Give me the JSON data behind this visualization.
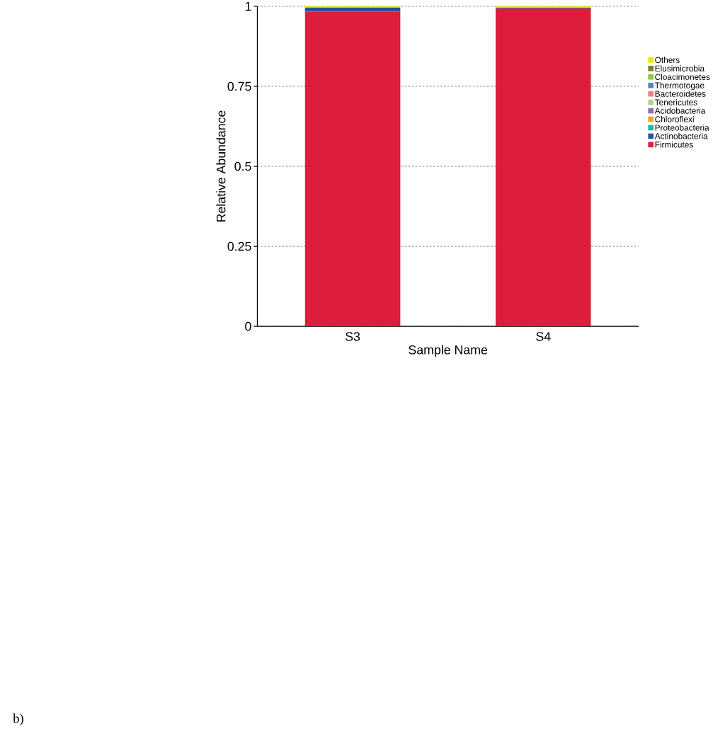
{
  "chart_data": {
    "type": "bar",
    "stacked": true,
    "xlabel": "Sample Name",
    "ylabel": "Relative Abundance",
    "categories": [
      "S3",
      "S4"
    ],
    "series": [
      {
        "name": "Firmicutes",
        "color": "#dc1e3c",
        "values": [
          0.983,
          0.993
        ]
      },
      {
        "name": "Actinobacteria",
        "color": "#2e4fa0",
        "values": [
          0.013,
          0.002
        ]
      },
      {
        "name": "Proteobacteria",
        "color": "#1fb5a5",
        "values": [
          0,
          0
        ]
      },
      {
        "name": "Chloroflexi",
        "color": "#f9a11b",
        "values": [
          0,
          0
        ]
      },
      {
        "name": "Acidobacteria",
        "color": "#8b6bb8",
        "values": [
          0,
          0.001
        ]
      },
      {
        "name": "Tenericutes",
        "color": "#a8d88f",
        "values": [
          0,
          0
        ]
      },
      {
        "name": "Bacteroidetes",
        "color": "#f08080",
        "values": [
          0,
          0
        ]
      },
      {
        "name": "Thermotogae",
        "color": "#4a86c8",
        "values": [
          0,
          0
        ]
      },
      {
        "name": "Cloacimonetes",
        "color": "#8fc63f",
        "values": [
          0,
          0
        ]
      },
      {
        "name": "Elusimicrobia",
        "color": "#7f7f2f",
        "values": [
          0,
          0
        ]
      },
      {
        "name": "Others",
        "color": "#f2e600",
        "values": [
          0.004,
          0.004
        ]
      }
    ],
    "ylim": [
      0,
      1
    ],
    "yticks": [
      0,
      0.25,
      0.5,
      0.75,
      1
    ],
    "grid": "y",
    "legend": "right",
    "annotations": [
      "b)"
    ]
  }
}
